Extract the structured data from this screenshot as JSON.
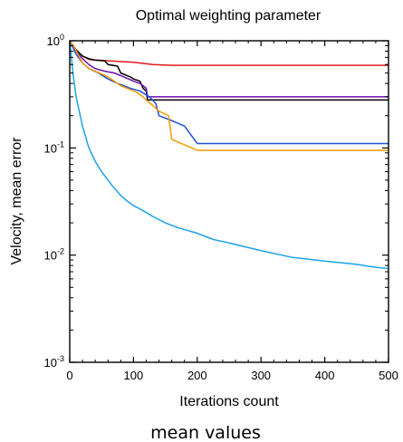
{
  "chart_data": {
    "type": "line",
    "title": "Optimal weighting parameter",
    "xlabel": "Iterations count",
    "ylabel": "Velocity, mean error",
    "caption": "mean values",
    "x_scale": "linear",
    "y_scale": "log",
    "xlim": [
      0,
      500
    ],
    "ylim": [
      0.001,
      1
    ],
    "x_ticks": [
      0,
      100,
      200,
      300,
      400,
      500
    ],
    "y_ticks": [
      {
        "value": 1,
        "base": "10",
        "exp": "0"
      },
      {
        "value": 0.1,
        "base": "10",
        "exp": "-1"
      },
      {
        "value": 0.01,
        "base": "10",
        "exp": "-2"
      },
      {
        "value": 0.001,
        "base": "10",
        "exp": "-3"
      }
    ],
    "grid": false,
    "series": [
      {
        "color": "#e41a1c",
        "x": [
          0,
          10,
          20,
          30,
          40,
          60,
          80,
          100,
          130,
          160,
          200,
          300,
          400,
          500
        ],
        "y": [
          1.0,
          0.82,
          0.72,
          0.67,
          0.66,
          0.65,
          0.64,
          0.63,
          0.6,
          0.59,
          0.59,
          0.59,
          0.59,
          0.59
        ]
      },
      {
        "color": "#000000",
        "x": [
          0,
          10,
          20,
          30,
          40,
          55,
          60,
          75,
          80,
          95,
          100,
          110,
          115,
          120,
          122,
          200,
          300,
          400,
          500
        ],
        "y": [
          1.0,
          0.82,
          0.72,
          0.68,
          0.66,
          0.65,
          0.6,
          0.58,
          0.5,
          0.46,
          0.44,
          0.42,
          0.36,
          0.34,
          0.28,
          0.28,
          0.28,
          0.28,
          0.28
        ]
      },
      {
        "color": "#6a0dad",
        "x": [
          0,
          10,
          20,
          30,
          40,
          55,
          70,
          85,
          100,
          110,
          115,
          120,
          122,
          200,
          300,
          400,
          500
        ],
        "y": [
          1.0,
          0.8,
          0.68,
          0.6,
          0.55,
          0.52,
          0.5,
          0.46,
          0.42,
          0.4,
          0.38,
          0.36,
          0.3,
          0.3,
          0.3,
          0.3,
          0.3
        ]
      },
      {
        "color": "#1f4fd8",
        "x": [
          0,
          10,
          20,
          30,
          45,
          60,
          75,
          95,
          110,
          125,
          135,
          140,
          160,
          180,
          200,
          300,
          400,
          500
        ],
        "y": [
          1.0,
          0.75,
          0.62,
          0.55,
          0.5,
          0.44,
          0.4,
          0.36,
          0.34,
          0.3,
          0.26,
          0.2,
          0.18,
          0.16,
          0.11,
          0.11,
          0.11,
          0.11
        ]
      },
      {
        "color": "#f59b00",
        "x": [
          0,
          8,
          20,
          30,
          40,
          50,
          60,
          70,
          80,
          95,
          105,
          115,
          120,
          130,
          140,
          155,
          160,
          175,
          200,
          300,
          400,
          500
        ],
        "y": [
          1.0,
          0.85,
          0.62,
          0.55,
          0.52,
          0.49,
          0.46,
          0.42,
          0.38,
          0.35,
          0.33,
          0.3,
          0.28,
          0.25,
          0.22,
          0.2,
          0.12,
          0.11,
          0.095,
          0.095,
          0.095,
          0.095
        ]
      },
      {
        "color": "#1aa3e8",
        "x": [
          0,
          5,
          10,
          20,
          30,
          40,
          50,
          60,
          70,
          80,
          90,
          100,
          110,
          120,
          130,
          150,
          170,
          200,
          225,
          250,
          300,
          350,
          400,
          450,
          480,
          500
        ],
        "y": [
          1.0,
          0.5,
          0.3,
          0.16,
          0.1,
          0.075,
          0.06,
          0.05,
          0.042,
          0.036,
          0.032,
          0.029,
          0.027,
          0.025,
          0.023,
          0.02,
          0.018,
          0.016,
          0.014,
          0.013,
          0.011,
          0.0095,
          0.0088,
          0.0082,
          0.0077,
          0.0075
        ]
      }
    ]
  }
}
